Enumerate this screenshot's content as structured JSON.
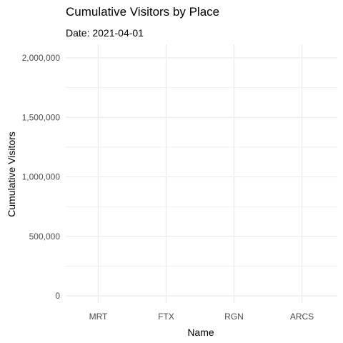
{
  "chart_data": {
    "type": "bar",
    "title": "Cumulative Visitors by Place",
    "subtitle": "Date: 2021-04-01",
    "xlabel": "Name",
    "ylabel": "Cumulative Visitors",
    "categories": [
      "MRT",
      "FTX",
      "RGN",
      "ARCS"
    ],
    "values": [
      0,
      0,
      0,
      0
    ],
    "ylim": [
      0,
      2000000
    ],
    "y_ticks": [
      0,
      500000,
      1000000,
      1500000,
      2000000
    ],
    "y_tick_labels": [
      "0",
      "500,000",
      "1,000,000",
      "1,500,000",
      "2,000,000"
    ],
    "grid": true,
    "colors": {
      "grid": "#ebebeb",
      "tick_text": "#4d4d4d",
      "text": "#000000",
      "background": "#ffffff"
    }
  }
}
